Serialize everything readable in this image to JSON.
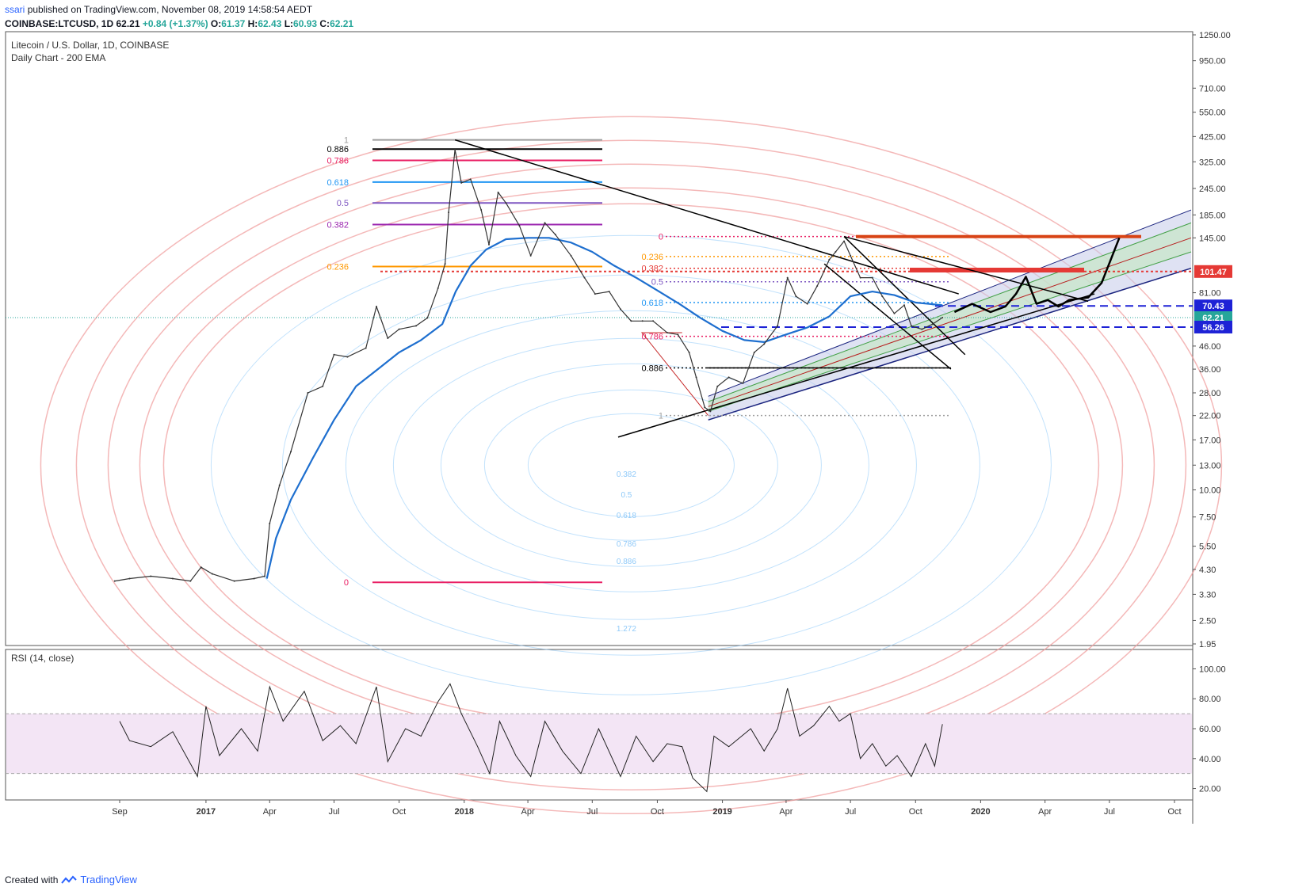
{
  "header": {
    "user": "ssari",
    "published": "published on TradingView.com, November 08, 2019 14:58:54 AEDT",
    "symbol_line": "COINBASE:LTCUSD, 1D",
    "last": "62.21",
    "change": "+0.84 (+1.37%)",
    "ohlc_o_label": "O:",
    "ohlc_o": "61.37",
    "ohlc_h_label": "H:",
    "ohlc_h": "62.43",
    "ohlc_l_label": "L:",
    "ohlc_l": "60.93",
    "ohlc_c_label": "C:",
    "ohlc_c": "62.21"
  },
  "chart_data": {
    "type": "line",
    "title": "Litecoin / U.S. Dollar, 1D, COINBASE",
    "subtitle": "Daily Chart - 200 EMA",
    "y_scale": "log",
    "ylim": [
      1.95,
      1250
    ],
    "y_ticks": [
      "1250.00",
      "950.00",
      "710.00",
      "550.00",
      "425.00",
      "325.00",
      "245.00",
      "185.00",
      "145.00",
      "101.47",
      "81.00",
      "70.43",
      "62.21",
      "56.26",
      "46.00",
      "36.00",
      "28.00",
      "22.00",
      "17.00",
      "13.00",
      "10.00",
      "7.50",
      "5.50",
      "4.30",
      "3.30",
      "2.50",
      "1.95"
    ],
    "x_ticks": [
      "Sep",
      "2017",
      "Apr",
      "Jul",
      "Oct",
      "2018",
      "Apr",
      "Jul",
      "Oct",
      "2019",
      "Apr",
      "Jul",
      "Oct",
      "2020",
      "Apr",
      "Jul",
      "Oct"
    ],
    "price_labels": [
      {
        "value": 101.47,
        "text": "101.47",
        "color": "#e53935"
      },
      {
        "value": 70.43,
        "text": "70.43",
        "color": "#1e22d6"
      },
      {
        "value": 62.21,
        "text": "62.21",
        "color": "#26a69a"
      },
      {
        "value": 56.26,
        "text": "56.26",
        "color": "#1e22d6"
      }
    ],
    "series": [
      {
        "name": "Price",
        "points": [
          [
            "2016-08-25",
            3.8
          ],
          [
            "2016-09-15",
            3.9
          ],
          [
            "2016-10-15",
            4.0
          ],
          [
            "2016-11-15",
            3.9
          ],
          [
            "2016-12-10",
            3.8
          ],
          [
            "2016-12-25",
            4.4
          ],
          [
            "2017-01-10",
            4.1
          ],
          [
            "2017-02-10",
            3.8
          ],
          [
            "2017-03-10",
            3.9
          ],
          [
            "2017-03-25",
            4.0
          ],
          [
            "2017-04-01",
            7.0
          ],
          [
            "2017-04-15",
            10.5
          ],
          [
            "2017-05-01",
            15.0
          ],
          [
            "2017-05-25",
            28.0
          ],
          [
            "2017-06-15",
            30.0
          ],
          [
            "2017-07-01",
            42.0
          ],
          [
            "2017-07-20",
            41.0
          ],
          [
            "2017-08-15",
            45.0
          ],
          [
            "2017-08-30",
            70.0
          ],
          [
            "2017-09-15",
            50.0
          ],
          [
            "2017-10-01",
            55.0
          ],
          [
            "2017-10-25",
            57.0
          ],
          [
            "2017-11-10",
            62.0
          ],
          [
            "2017-11-25",
            85.0
          ],
          [
            "2017-12-05",
            110.0
          ],
          [
            "2017-12-10",
            190.0
          ],
          [
            "2017-12-19",
            370.0
          ],
          [
            "2017-12-28",
            260.0
          ],
          [
            "2018-01-10",
            270.0
          ],
          [
            "2018-01-25",
            195.0
          ],
          [
            "2018-02-05",
            135.0
          ],
          [
            "2018-02-18",
            235.0
          ],
          [
            "2018-03-01",
            210.0
          ],
          [
            "2018-03-20",
            165.0
          ],
          [
            "2018-04-05",
            120.0
          ],
          [
            "2018-04-25",
            170.0
          ],
          [
            "2018-05-10",
            150.0
          ],
          [
            "2018-06-01",
            120.0
          ],
          [
            "2018-06-20",
            95.0
          ],
          [
            "2018-07-05",
            80.0
          ],
          [
            "2018-07-25",
            82.0
          ],
          [
            "2018-08-10",
            68.0
          ],
          [
            "2018-08-25",
            60.0
          ],
          [
            "2018-09-10",
            60.0
          ],
          [
            "2018-09-25",
            60.0
          ],
          [
            "2018-10-15",
            53.0
          ],
          [
            "2018-10-30",
            52.0
          ],
          [
            "2018-11-15",
            43.0
          ],
          [
            "2018-11-25",
            33.0
          ],
          [
            "2018-12-07",
            24.0
          ],
          [
            "2018-12-15",
            23.0
          ],
          [
            "2018-12-25",
            30.0
          ],
          [
            "2019-01-10",
            33.0
          ],
          [
            "2019-01-30",
            31.0
          ],
          [
            "2019-02-15",
            43.0
          ],
          [
            "2019-03-01",
            47.0
          ],
          [
            "2019-03-20",
            57.0
          ],
          [
            "2019-04-03",
            95.0
          ],
          [
            "2019-04-15",
            78.0
          ],
          [
            "2019-05-01",
            72.0
          ],
          [
            "2019-05-15",
            87.0
          ],
          [
            "2019-06-01",
            115.0
          ],
          [
            "2019-06-10",
            125.0
          ],
          [
            "2019-06-22",
            140.0
          ],
          [
            "2019-07-01",
            120.0
          ],
          [
            "2019-07-15",
            95.0
          ],
          [
            "2019-08-01",
            95.0
          ],
          [
            "2019-08-15",
            78.0
          ],
          [
            "2019-09-01",
            65.0
          ],
          [
            "2019-09-15",
            71.0
          ],
          [
            "2019-09-25",
            57.0
          ],
          [
            "2019-10-10",
            55.0
          ],
          [
            "2019-10-25",
            58.0
          ],
          [
            "2019-11-08",
            62.21
          ]
        ]
      },
      {
        "name": "200 EMA",
        "points": [
          [
            "2017-03-28",
            3.9
          ],
          [
            "2017-04-10",
            6.0
          ],
          [
            "2017-05-01",
            9.0
          ],
          [
            "2017-06-01",
            14.0
          ],
          [
            "2017-07-01",
            21.0
          ],
          [
            "2017-08-01",
            30.0
          ],
          [
            "2017-09-01",
            36.0
          ],
          [
            "2017-10-01",
            43.0
          ],
          [
            "2017-11-01",
            49.0
          ],
          [
            "2017-12-01",
            58.0
          ],
          [
            "2017-12-20",
            82.0
          ],
          [
            "2018-01-10",
            108.0
          ],
          [
            "2018-02-01",
            128.0
          ],
          [
            "2018-03-01",
            143.0
          ],
          [
            "2018-04-01",
            145.0
          ],
          [
            "2018-05-01",
            145.0
          ],
          [
            "2018-06-01",
            138.0
          ],
          [
            "2018-07-01",
            125.0
          ],
          [
            "2018-08-01",
            108.0
          ],
          [
            "2018-09-01",
            95.0
          ],
          [
            "2018-10-01",
            83.0
          ],
          [
            "2018-11-01",
            72.0
          ],
          [
            "2018-12-01",
            62.0
          ],
          [
            "2019-01-01",
            54.0
          ],
          [
            "2019-02-01",
            49.0
          ],
          [
            "2019-03-01",
            48.0
          ],
          [
            "2019-04-01",
            52.0
          ],
          [
            "2019-05-01",
            56.0
          ],
          [
            "2019-06-01",
            63.0
          ],
          [
            "2019-07-01",
            78.0
          ],
          [
            "2019-08-01",
            82.0
          ],
          [
            "2019-09-01",
            79.0
          ],
          [
            "2019-10-01",
            73.0
          ],
          [
            "2019-11-08",
            71.0
          ]
        ]
      },
      {
        "name": "Projection",
        "points": [
          [
            "2019-11-25",
            66.0
          ],
          [
            "2019-12-20",
            72.0
          ],
          [
            "2020-01-15",
            66.0
          ],
          [
            "2020-02-05",
            70.0
          ],
          [
            "2020-02-20",
            80.0
          ],
          [
            "2020-03-05",
            96.0
          ],
          [
            "2020-03-20",
            72.0
          ],
          [
            "2020-04-05",
            75.0
          ],
          [
            "2020-04-20",
            70.0
          ],
          [
            "2020-05-05",
            75.0
          ],
          [
            "2020-06-01",
            77.0
          ],
          [
            "2020-06-20",
            90.0
          ],
          [
            "2020-07-15",
            145.0
          ]
        ]
      }
    ],
    "rsi": {
      "label": "RSI (14, close)",
      "ylim": [
        15,
        105
      ],
      "y_ticks": [
        "100.00",
        "80.00",
        "60.00",
        "40.00",
        "20.00"
      ],
      "upper_band": 70,
      "lower_band": 30,
      "points": [
        [
          "2016-09-01",
          65
        ],
        [
          "2016-09-15",
          52
        ],
        [
          "2016-10-15",
          48
        ],
        [
          "2016-11-15",
          58
        ],
        [
          "2016-12-20",
          28
        ],
        [
          "2017-01-01",
          75
        ],
        [
          "2017-01-20",
          42
        ],
        [
          "2017-02-20",
          60
        ],
        [
          "2017-03-15",
          45
        ],
        [
          "2017-04-01",
          88
        ],
        [
          "2017-04-20",
          65
        ],
        [
          "2017-05-20",
          85
        ],
        [
          "2017-06-15",
          52
        ],
        [
          "2017-07-10",
          62
        ],
        [
          "2017-08-01",
          50
        ],
        [
          "2017-08-30",
          88
        ],
        [
          "2017-09-15",
          38
        ],
        [
          "2017-10-10",
          60
        ],
        [
          "2017-11-01",
          55
        ],
        [
          "2017-11-25",
          78
        ],
        [
          "2017-12-12",
          90
        ],
        [
          "2017-12-28",
          70
        ],
        [
          "2018-01-20",
          48
        ],
        [
          "2018-02-06",
          30
        ],
        [
          "2018-02-20",
          65
        ],
        [
          "2018-03-15",
          42
        ],
        [
          "2018-04-05",
          28
        ],
        [
          "2018-04-25",
          65
        ],
        [
          "2018-05-20",
          45
        ],
        [
          "2018-06-15",
          30
        ],
        [
          "2018-07-10",
          60
        ],
        [
          "2018-08-10",
          28
        ],
        [
          "2018-09-01",
          55
        ],
        [
          "2018-09-25",
          38
        ],
        [
          "2018-10-15",
          50
        ],
        [
          "2018-11-05",
          48
        ],
        [
          "2018-11-20",
          27
        ],
        [
          "2018-12-10",
          18
        ],
        [
          "2018-12-20",
          55
        ],
        [
          "2019-01-10",
          48
        ],
        [
          "2019-02-10",
          60
        ],
        [
          "2019-03-01",
          45
        ],
        [
          "2019-03-20",
          60
        ],
        [
          "2019-04-03",
          87
        ],
        [
          "2019-04-20",
          55
        ],
        [
          "2019-05-10",
          62
        ],
        [
          "2019-06-01",
          75
        ],
        [
          "2019-06-15",
          65
        ],
        [
          "2019-07-01",
          70
        ],
        [
          "2019-07-15",
          40
        ],
        [
          "2019-08-01",
          50
        ],
        [
          "2019-08-20",
          35
        ],
        [
          "2019-09-05",
          42
        ],
        [
          "2019-09-25",
          28
        ],
        [
          "2019-10-15",
          50
        ],
        [
          "2019-10-28",
          35
        ],
        [
          "2019-11-08",
          63
        ]
      ]
    },
    "fib_left": [
      {
        "level": "1",
        "value": 410,
        "color": "#9e9e9e"
      },
      {
        "level": "0.886",
        "value": 372,
        "color": "#000000"
      },
      {
        "level": "0.786",
        "value": 330,
        "color": "#e91e63"
      },
      {
        "level": "0.618",
        "value": 262,
        "color": "#2196f3"
      },
      {
        "level": "0.5",
        "value": 210,
        "color": "#7e57c2"
      },
      {
        "level": "0.382",
        "value": 167,
        "color": "#9c27b0"
      },
      {
        "level": "0.236",
        "value": 107,
        "color": "#ff9800"
      },
      {
        "level": "0",
        "value": 3.75,
        "color": "#e91e63"
      }
    ],
    "fib_right": [
      {
        "level": "0",
        "value": 147,
        "color": "#e91e63"
      },
      {
        "level": "0.236",
        "value": 119,
        "color": "#ff9800"
      },
      {
        "level": "0.382",
        "value": 105,
        "color": "#e53935"
      },
      {
        "level": "0.5",
        "value": 91,
        "color": "#7e57c2"
      },
      {
        "level": "0.618",
        "value": 73,
        "color": "#2196f3"
      },
      {
        "level": "0.786",
        "value": 51,
        "color": "#e91e63"
      },
      {
        "level": "0.886",
        "value": 36.5,
        "color": "#000000"
      },
      {
        "level": "1",
        "value": 22,
        "color": "#9e9e9e"
      }
    ],
    "circle_labels": [
      "0.382",
      "0.5",
      "0.618",
      "0.786",
      "0.886",
      "1.272"
    ],
    "grid": false,
    "legend": "top-left"
  },
  "footer": {
    "created_with": "Created with",
    "brand": "TradingView"
  }
}
